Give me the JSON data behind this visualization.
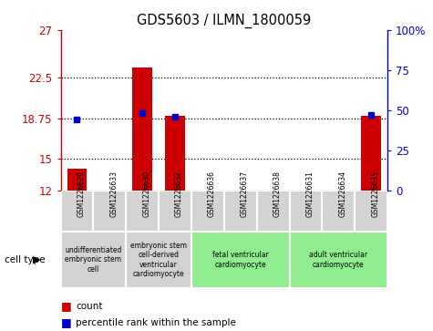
{
  "title": "GDS5603 / ILMN_1800059",
  "samples": [
    "GSM1226629",
    "GSM1226633",
    "GSM1226630",
    "GSM1226632",
    "GSM1226636",
    "GSM1226637",
    "GSM1226638",
    "GSM1226631",
    "GSM1226634",
    "GSM1226635"
  ],
  "counts": [
    14.0,
    12.0,
    23.5,
    19.0,
    12.0,
    12.0,
    12.0,
    12.0,
    12.0,
    19.0
  ],
  "percentiles": [
    44.0,
    null,
    48.0,
    46.0,
    null,
    null,
    null,
    null,
    null,
    47.0
  ],
  "ylim_left": [
    12,
    27
  ],
  "ylim_right": [
    0,
    100
  ],
  "yticks_left": [
    12,
    15,
    18.75,
    22.5,
    27
  ],
  "yticks_right": [
    0,
    25,
    50,
    75,
    100
  ],
  "ytick_labels_right": [
    "0",
    "25",
    "50",
    "75",
    "100%"
  ],
  "bar_color": "#cc0000",
  "dot_color": "#0000cc",
  "bar_width": 0.6,
  "cell_types": [
    {
      "label": "undifferentiated\nembryonic stem\ncell",
      "start": 0,
      "end": 1,
      "color": "#d3d3d3"
    },
    {
      "label": "embryonic stem\ncell-derived\nventricular\ncardiomyocyte",
      "start": 2,
      "end": 3,
      "color": "#d3d3d3"
    },
    {
      "label": "fetal ventricular\ncardiomyocyte",
      "start": 4,
      "end": 6,
      "color": "#90ee90"
    },
    {
      "label": "adult ventricular\ncardiomyocyte",
      "start": 7,
      "end": 9,
      "color": "#90ee90"
    }
  ],
  "sample_box_color": "#d3d3d3",
  "legend_count_label": "count",
  "legend_percentile_label": "percentile rank within the sample",
  "cell_type_label": "cell type",
  "background_color": "#ffffff"
}
